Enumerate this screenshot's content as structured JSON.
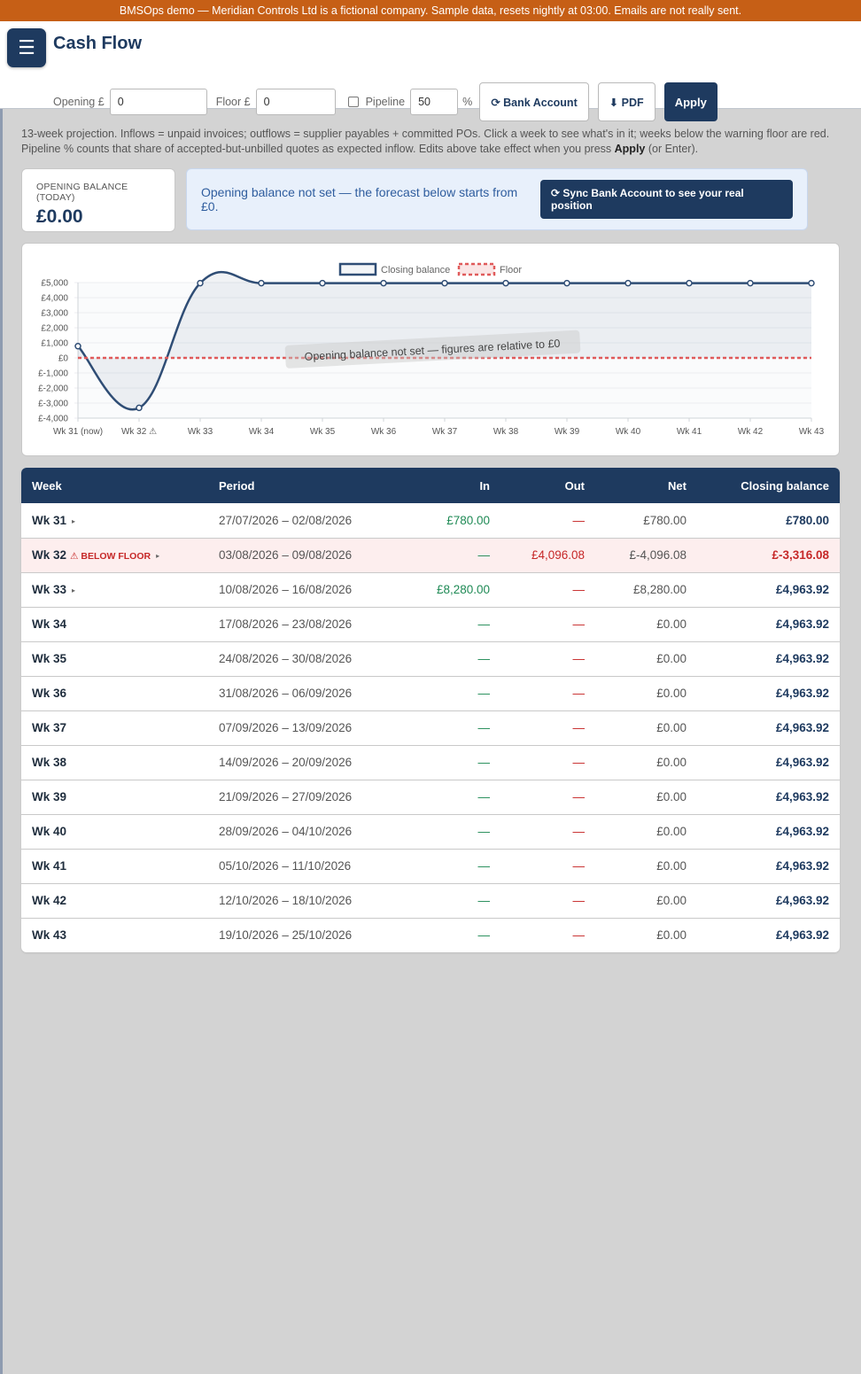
{
  "banner": "BMSOps demo — Meridian Controls Ltd is a fictional company. Sample data, resets nightly at 03:00. Emails are not really sent.",
  "menu_icon": "☰",
  "page_title": "Cash Flow",
  "controls": {
    "opening_label": "Opening £",
    "opening_value": "0",
    "floor_label": "Floor £",
    "floor_value": "0",
    "pipeline_label": "Pipeline",
    "pipeline_checked": false,
    "pipeline_value": "50",
    "pipeline_unit": "%",
    "bank_account_label": "⟳ Bank Account",
    "pdf_label": "⬇ PDF",
    "apply_label": "Apply"
  },
  "intro": {
    "text_before": "13-week projection. Inflows = unpaid invoices; outflows = supplier payables + committed POs. Click a week to see what's in it; weeks below the warning floor are red. Pipeline % counts that share of accepted-but-unbilled quotes as expected inflow. Edits above take effect when you press ",
    "bold": "Apply",
    "text_after": " (or Enter)."
  },
  "opening_card": {
    "label": "OPENING BALANCE (TODAY)",
    "value": "£0.00"
  },
  "notice": {
    "text": "Opening balance not set — the forecast below starts from £0.",
    "button": "⟳ Sync Bank Account to see your real position"
  },
  "chart_data": {
    "type": "line",
    "categories": [
      "Wk 31 (now)",
      "Wk 32 ⚠",
      "Wk 33",
      "Wk 34",
      "Wk 35",
      "Wk 36",
      "Wk 37",
      "Wk 38",
      "Wk 39",
      "Wk 40",
      "Wk 41",
      "Wk 42",
      "Wk 43"
    ],
    "series": [
      {
        "name": "Closing balance",
        "values": [
          780,
          -3316.08,
          4963.92,
          4963.92,
          4963.92,
          4963.92,
          4963.92,
          4963.92,
          4963.92,
          4963.92,
          4963.92,
          4963.92,
          4963.92
        ],
        "color": "#2f4d75"
      },
      {
        "name": "Floor",
        "values": [
          0,
          0,
          0,
          0,
          0,
          0,
          0,
          0,
          0,
          0,
          0,
          0,
          0
        ],
        "color": "#e05a5a",
        "dashed": true
      }
    ],
    "yticks": [
      "£5,000",
      "£4,000",
      "£3,000",
      "£2,000",
      "£1,000",
      "£0",
      "£-1,000",
      "£-2,000",
      "£-3,000",
      "£-4,000"
    ],
    "ylim": [
      -4000,
      5000
    ],
    "annotation": "Opening balance not set — figures are relative to £0",
    "legend_position": "top-center",
    "grid": true
  },
  "table": {
    "headers": [
      "Week",
      "Period",
      "In",
      "Out",
      "Net",
      "Closing balance"
    ],
    "below_floor_label": "⚠ BELOW FLOOR",
    "caret": "▸",
    "rows": [
      {
        "week": "Wk 31",
        "period": "27/07/2026 – 02/08/2026",
        "in": "£780.00",
        "out": "—",
        "net": "£780.00",
        "closing": "£780.00",
        "expand": true,
        "below": false
      },
      {
        "week": "Wk 32",
        "period": "03/08/2026 – 09/08/2026",
        "in": "—",
        "out": "£4,096.08",
        "net": "£-4,096.08",
        "closing": "£-3,316.08",
        "expand": true,
        "below": true
      },
      {
        "week": "Wk 33",
        "period": "10/08/2026 – 16/08/2026",
        "in": "£8,280.00",
        "out": "—",
        "net": "£8,280.00",
        "closing": "£4,963.92",
        "expand": true,
        "below": false
      },
      {
        "week": "Wk 34",
        "period": "17/08/2026 – 23/08/2026",
        "in": "—",
        "out": "—",
        "net": "£0.00",
        "closing": "£4,963.92",
        "expand": false,
        "below": false
      },
      {
        "week": "Wk 35",
        "period": "24/08/2026 – 30/08/2026",
        "in": "—",
        "out": "—",
        "net": "£0.00",
        "closing": "£4,963.92",
        "expand": false,
        "below": false
      },
      {
        "week": "Wk 36",
        "period": "31/08/2026 – 06/09/2026",
        "in": "—",
        "out": "—",
        "net": "£0.00",
        "closing": "£4,963.92",
        "expand": false,
        "below": false
      },
      {
        "week": "Wk 37",
        "period": "07/09/2026 – 13/09/2026",
        "in": "—",
        "out": "—",
        "net": "£0.00",
        "closing": "£4,963.92",
        "expand": false,
        "below": false
      },
      {
        "week": "Wk 38",
        "period": "14/09/2026 – 20/09/2026",
        "in": "—",
        "out": "—",
        "net": "£0.00",
        "closing": "£4,963.92",
        "expand": false,
        "below": false
      },
      {
        "week": "Wk 39",
        "period": "21/09/2026 – 27/09/2026",
        "in": "—",
        "out": "—",
        "net": "£0.00",
        "closing": "£4,963.92",
        "expand": false,
        "below": false
      },
      {
        "week": "Wk 40",
        "period": "28/09/2026 – 04/10/2026",
        "in": "—",
        "out": "—",
        "net": "£0.00",
        "closing": "£4,963.92",
        "expand": false,
        "below": false
      },
      {
        "week": "Wk 41",
        "period": "05/10/2026 – 11/10/2026",
        "in": "—",
        "out": "—",
        "net": "£0.00",
        "closing": "£4,963.92",
        "expand": false,
        "below": false
      },
      {
        "week": "Wk 42",
        "period": "12/10/2026 – 18/10/2026",
        "in": "—",
        "out": "—",
        "net": "£0.00",
        "closing": "£4,963.92",
        "expand": false,
        "below": false
      },
      {
        "week": "Wk 43",
        "period": "19/10/2026 – 25/10/2026",
        "in": "—",
        "out": "—",
        "net": "£0.00",
        "closing": "£4,963.92",
        "expand": false,
        "below": false
      }
    ]
  }
}
